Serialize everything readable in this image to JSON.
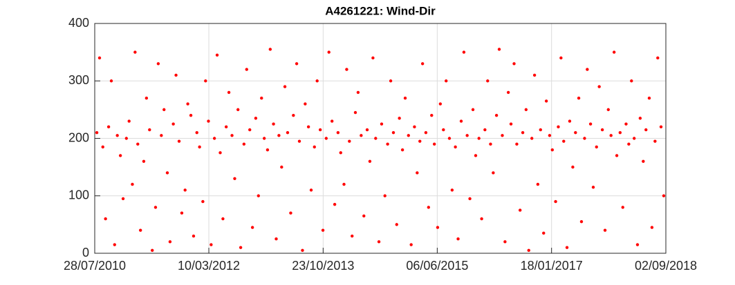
{
  "chart_data": {
    "type": "scatter",
    "title": "A4261221: Wind-Dir",
    "xlim": [
      "28/07/2010",
      "02/09/2018"
    ],
    "xticks": [
      "28/07/2010",
      "10/03/2012",
      "23/10/2013",
      "06/06/2015",
      "18/01/2017",
      "02/09/2018"
    ],
    "ylim": [
      0,
      400
    ],
    "yticks": [
      0,
      100,
      200,
      300,
      400
    ],
    "grid": true,
    "series": [
      {
        "color": "#ff0000",
        "x": [
          "08/08/2010",
          "22/08/2010",
          "08/09/2010",
          "22/09/2010",
          "08/10/2010",
          "22/10/2010",
          "08/11/2010",
          "22/11/2010",
          "08/12/2010",
          "22/12/2010",
          "08/01/2011",
          "22/01/2011",
          "08/02/2011",
          "22/02/2011",
          "08/03/2011",
          "22/03/2011",
          "08/04/2011",
          "22/04/2011",
          "08/05/2011",
          "22/05/2011",
          "08/06/2011",
          "22/06/2011",
          "08/07/2011",
          "22/07/2011",
          "08/08/2011",
          "22/08/2011",
          "08/09/2011",
          "22/09/2011",
          "08/10/2011",
          "22/10/2011",
          "08/11/2011",
          "22/11/2011",
          "08/12/2011",
          "22/12/2011",
          "08/01/2012",
          "22/01/2012",
          "08/02/2012",
          "22/02/2012",
          "08/03/2012",
          "22/03/2012",
          "08/04/2012",
          "22/04/2012",
          "08/05/2012",
          "22/05/2012",
          "08/06/2012",
          "22/06/2012",
          "08/07/2012",
          "22/07/2012",
          "08/08/2012",
          "22/08/2012",
          "08/09/2012",
          "22/09/2012",
          "08/10/2012",
          "22/10/2012",
          "08/11/2012",
          "22/11/2012",
          "08/12/2012",
          "22/12/2012",
          "08/01/2013",
          "22/01/2013",
          "08/02/2013",
          "22/02/2013",
          "08/03/2013",
          "22/03/2013",
          "08/04/2013",
          "22/04/2013",
          "08/05/2013",
          "22/05/2013",
          "08/06/2013",
          "22/06/2013",
          "08/07/2013",
          "22/07/2013",
          "08/08/2013",
          "22/08/2013",
          "08/09/2013",
          "22/09/2013",
          "08/10/2013",
          "22/10/2013",
          "08/11/2013",
          "22/11/2013",
          "08/12/2013",
          "22/12/2013",
          "08/01/2014",
          "22/01/2014",
          "08/02/2014",
          "22/02/2014",
          "08/03/2014",
          "22/03/2014",
          "08/04/2014",
          "22/04/2014",
          "08/05/2014",
          "22/05/2014",
          "08/06/2014",
          "22/06/2014",
          "08/07/2014",
          "22/07/2014",
          "08/08/2014",
          "22/08/2014",
          "08/09/2014",
          "22/09/2014",
          "08/10/2014",
          "22/10/2014",
          "08/11/2014",
          "22/11/2014",
          "08/12/2014",
          "22/12/2014",
          "08/01/2015",
          "22/01/2015",
          "08/02/2015",
          "22/02/2015",
          "08/03/2015",
          "22/03/2015",
          "08/04/2015",
          "22/04/2015",
          "08/05/2015",
          "22/05/2015",
          "08/06/2015",
          "22/06/2015",
          "08/07/2015",
          "22/07/2015",
          "08/08/2015",
          "22/08/2015",
          "08/09/2015",
          "22/09/2015",
          "08/10/2015",
          "22/10/2015",
          "08/11/2015",
          "22/11/2015",
          "08/12/2015",
          "22/12/2015",
          "08/01/2016",
          "22/01/2016",
          "08/02/2016",
          "22/02/2016",
          "08/03/2016",
          "22/03/2016",
          "08/04/2016",
          "22/04/2016",
          "08/05/2016",
          "22/05/2016",
          "08/06/2016",
          "22/06/2016",
          "08/07/2016",
          "22/07/2016",
          "08/08/2016",
          "22/08/2016",
          "08/09/2016",
          "22/09/2016",
          "08/10/2016",
          "22/10/2016",
          "08/11/2016",
          "22/11/2016",
          "08/12/2016",
          "22/12/2016",
          "08/01/2017",
          "22/01/2017",
          "08/02/2017",
          "22/02/2017",
          "08/03/2017",
          "22/03/2017",
          "08/04/2017",
          "22/04/2017",
          "08/05/2017",
          "22/05/2017",
          "08/06/2017",
          "22/06/2017",
          "08/07/2017",
          "22/07/2017",
          "08/08/2017",
          "22/08/2017",
          "08/09/2017",
          "22/09/2017",
          "08/10/2017",
          "22/10/2017",
          "08/11/2017",
          "22/11/2017",
          "08/12/2017",
          "22/12/2017",
          "08/01/2018",
          "22/01/2018",
          "08/02/2018",
          "22/02/2018",
          "08/03/2018",
          "22/03/2018",
          "08/04/2018",
          "22/04/2018",
          "08/05/2018",
          "22/05/2018",
          "08/06/2018",
          "22/06/2018",
          "08/07/2018",
          "22/07/2018",
          "08/08/2018",
          "22/08/2018"
        ],
        "values": [
          210,
          340,
          185,
          60,
          220,
          300,
          15,
          205,
          170,
          95,
          200,
          230,
          120,
          350,
          190,
          40,
          160,
          270,
          215,
          5,
          80,
          330,
          205,
          250,
          140,
          20,
          225,
          310,
          195,
          70,
          110,
          260,
          240,
          30,
          210,
          185,
          90,
          300,
          230,
          15,
          200,
          345,
          175,
          60,
          220,
          280,
          205,
          130,
          250,
          10,
          190,
          320,
          215,
          45,
          235,
          100,
          270,
          200,
          180,
          355,
          225,
          25,
          205,
          150,
          290,
          210,
          70,
          240,
          330,
          195,
          5,
          260,
          220,
          110,
          185,
          300,
          215,
          40,
          200,
          350,
          230,
          85,
          210,
          175,
          120,
          320,
          195,
          30,
          245,
          280,
          205,
          65,
          215,
          160,
          340,
          200,
          20,
          225,
          100,
          190,
          300,
          210,
          50,
          235,
          180,
          270,
          205,
          15,
          220,
          140,
          195,
          330,
          210,
          80,
          240,
          190,
          45,
          260,
          215,
          300,
          200,
          110,
          185,
          25,
          230,
          350,
          205,
          95,
          250,
          170,
          200,
          60,
          215,
          300,
          190,
          140,
          240,
          355,
          205,
          20,
          280,
          225,
          330,
          190,
          75,
          210,
          250,
          5,
          200,
          310,
          120,
          215,
          35,
          265,
          205,
          180,
          90,
          220,
          340,
          195,
          10,
          230,
          150,
          210,
          270,
          55,
          200,
          320,
          225,
          115,
          185,
          290,
          215,
          40,
          250,
          205,
          350,
          170,
          210,
          80,
          225,
          190,
          300,
          200,
          15,
          235,
          160,
          215,
          270,
          45,
          195,
          340,
          220,
          100
        ]
      }
    ]
  }
}
